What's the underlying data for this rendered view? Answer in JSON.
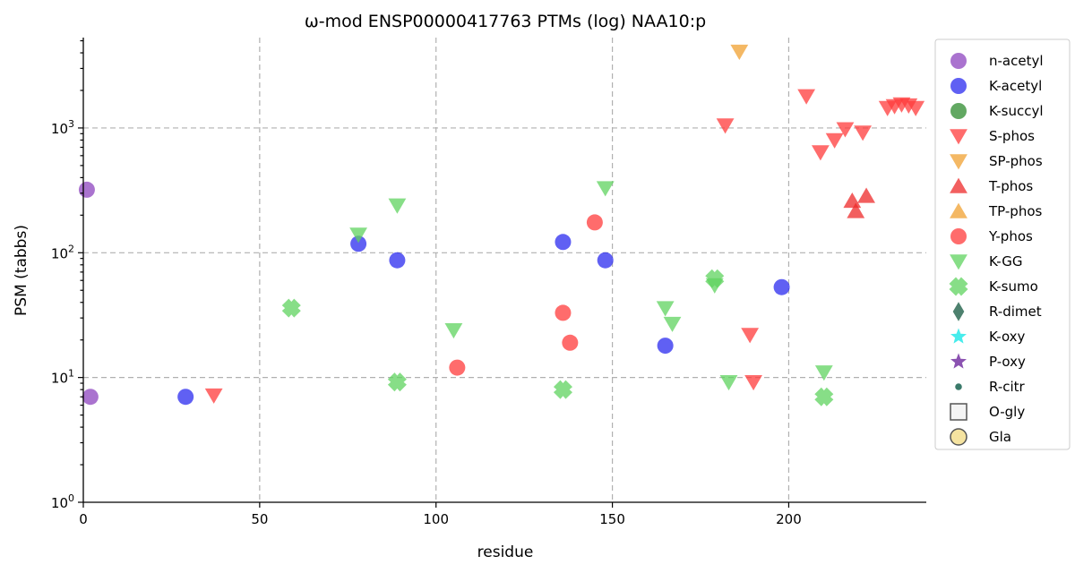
{
  "chart_data": {
    "type": "scatter",
    "title": "ω-mod ENSP00000417763 PTMs (log) NAA10:p",
    "xlabel": "residue",
    "ylabel": "PSM (tabbs)",
    "xlim": [
      0,
      239
    ],
    "ylim": [
      1,
      5300
    ],
    "yscale": "log",
    "grid": true,
    "legend_position": "outside-right",
    "x_ticks": [
      {
        "value": 0,
        "label": "0"
      },
      {
        "value": 50,
        "label": "50"
      },
      {
        "value": 100,
        "label": "100"
      },
      {
        "value": 150,
        "label": "150"
      },
      {
        "value": 200,
        "label": "200"
      }
    ],
    "y_ticks": [
      {
        "value": 1,
        "base": "10",
        "exp": "0"
      },
      {
        "value": 10,
        "base": "10",
        "exp": "1"
      },
      {
        "value": 100,
        "base": "10",
        "exp": "2"
      },
      {
        "value": 1000,
        "base": "10",
        "exp": "3"
      }
    ],
    "series": [
      {
        "name": "n-acetyl",
        "marker": "circle",
        "color": "#8e44bf",
        "points": [
          [
            1,
            320
          ],
          [
            2,
            7
          ]
        ]
      },
      {
        "name": "K-acetyl",
        "marker": "circle",
        "color": "#2b2bef",
        "points": [
          [
            29,
            7
          ],
          [
            78,
            118
          ],
          [
            89,
            87
          ],
          [
            136,
            122
          ],
          [
            148,
            87
          ],
          [
            165,
            18
          ],
          [
            198,
            53
          ]
        ]
      },
      {
        "name": "K-succyl",
        "marker": "circle",
        "color": "#2e8b2e",
        "points": []
      },
      {
        "name": "S-phos",
        "marker": "triangle-down",
        "color": "#ff3b3b",
        "points": [
          [
            37,
            7.2
          ],
          [
            182,
            1050
          ],
          [
            189,
            22
          ],
          [
            190,
            9.2
          ],
          [
            205,
            1800
          ],
          [
            209,
            640
          ],
          [
            213,
            800
          ],
          [
            216,
            980
          ],
          [
            221,
            920
          ],
          [
            228,
            1450
          ],
          [
            230,
            1500
          ],
          [
            232,
            1550
          ],
          [
            234,
            1520
          ],
          [
            236,
            1450
          ]
        ]
      },
      {
        "name": "SP-phos",
        "marker": "triangle-down",
        "color": "#f0a030",
        "points": [
          [
            186,
            4100
          ]
        ]
      },
      {
        "name": "T-phos",
        "marker": "triangle-up",
        "color": "#ee2a2a",
        "points": [
          [
            218,
            260
          ],
          [
            219,
            215
          ],
          [
            222,
            285
          ]
        ]
      },
      {
        "name": "TP-phos",
        "marker": "triangle-up",
        "color": "#f0a030",
        "points": []
      },
      {
        "name": "Y-phos",
        "marker": "circle",
        "color": "#ff3b3b",
        "points": [
          [
            106,
            12
          ],
          [
            136,
            33
          ],
          [
            138,
            19
          ],
          [
            145,
            175
          ]
        ]
      },
      {
        "name": "K-GG",
        "marker": "triangle-down",
        "color": "#5fd35f",
        "points": [
          [
            78,
            140
          ],
          [
            89,
            240
          ],
          [
            105,
            24
          ],
          [
            148,
            330
          ],
          [
            165,
            36
          ],
          [
            167,
            27
          ],
          [
            179,
            55
          ],
          [
            183,
            9.2
          ],
          [
            210,
            11
          ]
        ]
      },
      {
        "name": "K-sumo",
        "marker": "x",
        "color": "#5fd35f",
        "points": [
          [
            59,
            36
          ],
          [
            89,
            9.2
          ],
          [
            136,
            8
          ],
          [
            179,
            62
          ],
          [
            210,
            7
          ]
        ]
      },
      {
        "name": "R-dimet",
        "marker": "diamond",
        "color": "#2e6b55",
        "points": []
      },
      {
        "name": "K-oxy",
        "marker": "star",
        "color": "#33eaea",
        "points": []
      },
      {
        "name": "P-oxy",
        "marker": "star",
        "color": "#7e3fa8",
        "points": []
      },
      {
        "name": "R-citr",
        "marker": "dot",
        "color": "#3a7a6a",
        "points": []
      },
      {
        "name": "O-gly",
        "marker": "square-open",
        "color": "#f4f4f4",
        "points": []
      },
      {
        "name": "Gla",
        "marker": "circle-open",
        "color": "#f5e3a0",
        "points": []
      }
    ]
  }
}
